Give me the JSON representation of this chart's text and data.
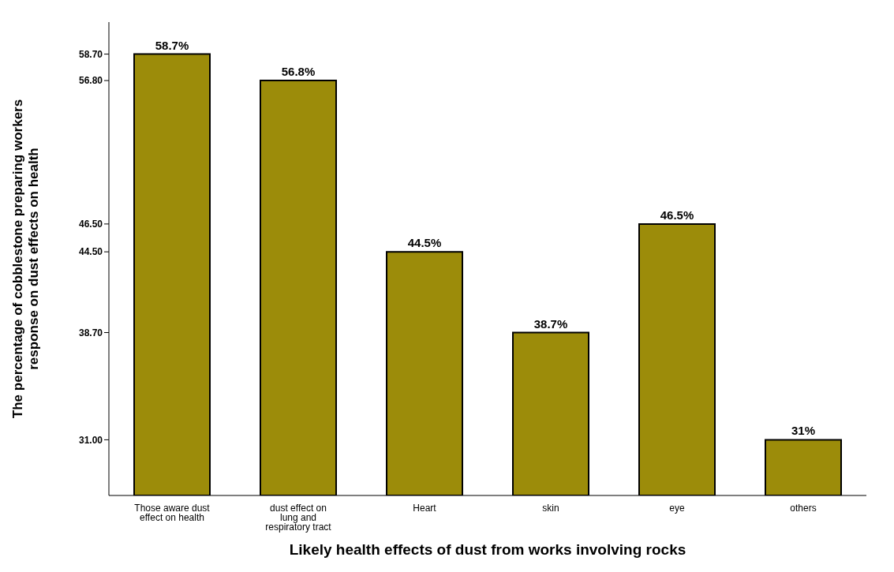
{
  "chart_data": {
    "type": "bar",
    "xlabel": "Likely  health effects of dust from works involving rocks",
    "ylabel": "The percentage of cobblestone preparing workers response on dust effects on health",
    "categories": [
      "Those aware dust effect on health",
      "dust effect on lung and respiratory tract",
      "Heart",
      "skin",
      "eye",
      "others"
    ],
    "values": [
      58.7,
      56.8,
      44.5,
      38.7,
      46.5,
      31
    ],
    "value_labels": [
      "58.7%",
      "56.8%",
      "44.5%",
      "38.7%",
      "46.5%",
      "31%"
    ],
    "color": "#9c8c0a",
    "ylim": [
      27,
      61
    ],
    "yticks": [
      {
        "value": 31,
        "label": "31.00"
      },
      {
        "value": 38.7,
        "label": "38.70"
      },
      {
        "value": 44.5,
        "label": "44.50"
      },
      {
        "value": 46.5,
        "label": "46.50"
      },
      {
        "value": 56.8,
        "label": "56.80"
      },
      {
        "value": 58.7,
        "label": "58.70"
      }
    ],
    "grid": false
  }
}
